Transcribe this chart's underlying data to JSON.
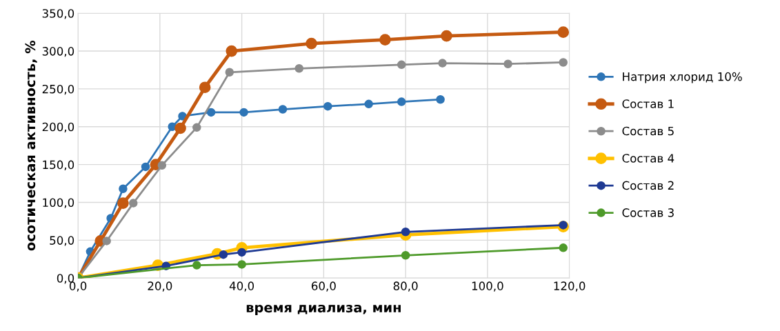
{
  "chart_data": {
    "type": "line",
    "xlabel": "время диализа, мин",
    "ylabel": "осотическая активность, %",
    "xlim": [
      0,
      120
    ],
    "ylim": [
      0,
      350
    ],
    "xticks": [
      {
        "value": 0,
        "label": "0,0"
      },
      {
        "value": 20,
        "label": "20,0"
      },
      {
        "value": 40,
        "label": "40,0"
      },
      {
        "value": 60,
        "label": "60,0"
      },
      {
        "value": 80,
        "label": "80,0"
      },
      {
        "value": 100,
        "label": "100,0"
      },
      {
        "value": 120,
        "label": "120,0"
      }
    ],
    "yticks": [
      {
        "value": 0,
        "label": "0,0"
      },
      {
        "value": 50,
        "label": "50,0"
      },
      {
        "value": 100,
        "label": "100,0"
      },
      {
        "value": 150,
        "label": "150,0"
      },
      {
        "value": 200,
        "label": "200,0"
      },
      {
        "value": 250,
        "label": "250,0"
      },
      {
        "value": 300,
        "label": "300,0"
      },
      {
        "value": 350,
        "label": "350,0"
      }
    ],
    "grid": true,
    "legend": "right",
    "marker": "circle",
    "line_style": "solid",
    "series": [
      {
        "name": "Натрия хлорид 10%",
        "color": "#2e75b6",
        "x": [
          0,
          3,
          8,
          11,
          16.5,
          23,
          25.5,
          32.5,
          40.5,
          50,
          61,
          71,
          79,
          88.5
        ],
        "values": [
          0,
          35,
          79,
          118,
          147,
          200,
          214,
          219,
          219,
          223,
          227,
          230,
          233,
          236
        ]
      },
      {
        "name": "Состав 1",
        "color": "#c55a11",
        "x": [
          0,
          5.5,
          11,
          19,
          25,
          31,
          37.5,
          57,
          75,
          90,
          118.5
        ],
        "values": [
          0,
          49,
          99,
          150,
          198,
          252,
          300,
          310,
          315,
          320,
          325
        ]
      },
      {
        "name": "Состав 5",
        "color": "#8c8c8c",
        "x": [
          0,
          7,
          13.5,
          20.5,
          29,
          37,
          54,
          79,
          89,
          105,
          118.5
        ],
        "values": [
          0,
          49,
          99,
          149,
          199,
          272,
          277,
          282,
          284,
          283,
          285
        ]
      },
      {
        "name": "Состав 4",
        "color": "#ffc000",
        "x": [
          0,
          19.5,
          34,
          40,
          80,
          118.5
        ],
        "values": [
          0,
          17,
          32,
          40,
          57,
          68
        ]
      },
      {
        "name": "Состав 2",
        "color": "#1f3a93",
        "x": [
          0,
          21.5,
          35.5,
          40,
          80,
          118.5
        ],
        "values": [
          0,
          16,
          31,
          34,
          61,
          70
        ]
      },
      {
        "name": "Состав 3",
        "color": "#4e9a2a",
        "x": [
          0,
          29,
          40,
          80,
          118.5
        ],
        "values": [
          0,
          17,
          18,
          30,
          40
        ]
      }
    ]
  }
}
